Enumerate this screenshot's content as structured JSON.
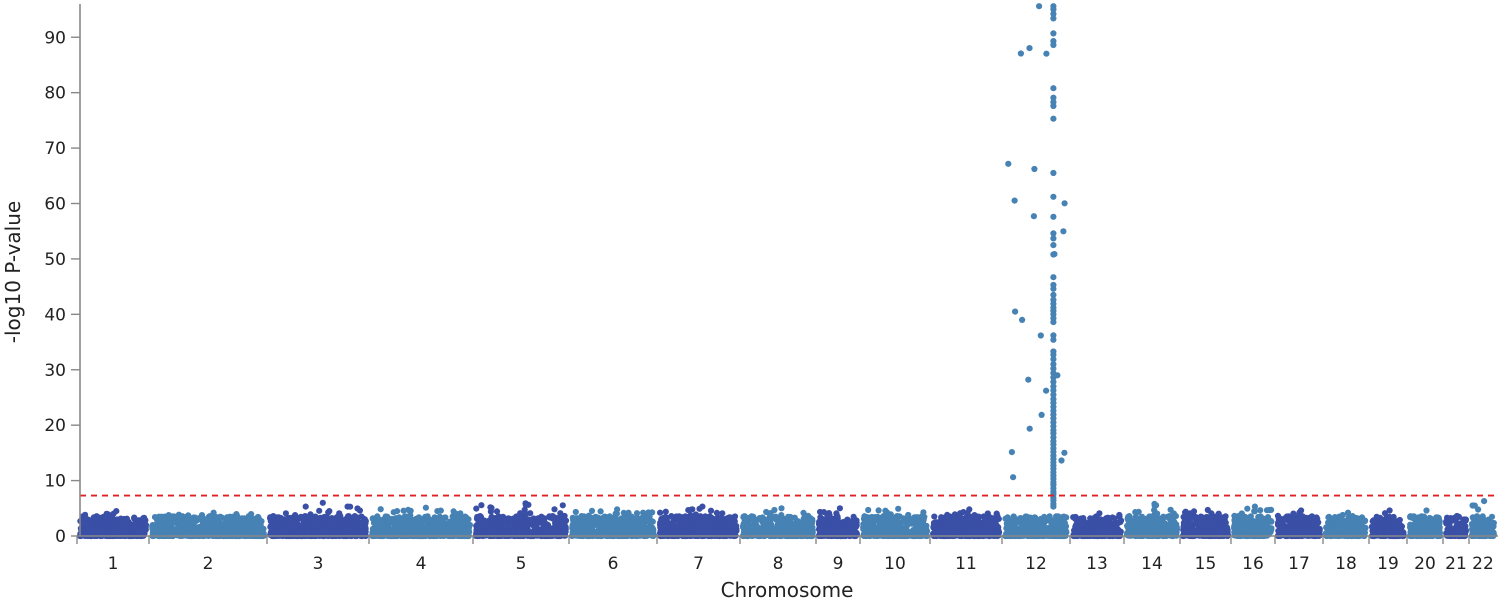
{
  "chart_data": {
    "type": "scatter",
    "subtype": "manhattan",
    "title": "",
    "xlabel": "Chromosome",
    "ylabel": "-log10 P-value",
    "ylim": [
      0,
      96
    ],
    "yticks": [
      0,
      10,
      20,
      30,
      40,
      50,
      60,
      70,
      80,
      90
    ],
    "grid": false,
    "legend": "none",
    "colors": {
      "dark": "#3a4fa6",
      "light": "#4682b4",
      "threshold": "#e02020",
      "axis": "#888888"
    },
    "threshold": {
      "value": 7.3,
      "style": "dashed"
    },
    "chromosomes": [
      {
        "label": "1",
        "color": "dark",
        "max": 4.5
      },
      {
        "label": "2",
        "color": "light",
        "max": 4.2
      },
      {
        "label": "3",
        "color": "dark",
        "max": 6.0
      },
      {
        "label": "4",
        "color": "light",
        "max": 5.1
      },
      {
        "label": "5",
        "color": "dark",
        "max": 5.9
      },
      {
        "label": "6",
        "color": "light",
        "max": 4.8
      },
      {
        "label": "7",
        "color": "dark",
        "max": 5.3
      },
      {
        "label": "8",
        "color": "light",
        "max": 5.0
      },
      {
        "label": "9",
        "color": "dark",
        "max": 5.0
      },
      {
        "label": "10",
        "color": "light",
        "max": 4.9
      },
      {
        "label": "11",
        "color": "dark",
        "max": 4.8
      },
      {
        "label": "12",
        "color": "light",
        "max": 95.6
      },
      {
        "label": "13",
        "color": "dark",
        "max": 4.1
      },
      {
        "label": "14",
        "color": "light",
        "max": 5.8
      },
      {
        "label": "15",
        "color": "dark",
        "max": 4.7
      },
      {
        "label": "16",
        "color": "light",
        "max": 5.3
      },
      {
        "label": "17",
        "color": "dark",
        "max": 4.6
      },
      {
        "label": "18",
        "color": "light",
        "max": 4.2
      },
      {
        "label": "19",
        "color": "dark",
        "max": 4.6
      },
      {
        "label": "20",
        "color": "light",
        "max": 4.6
      },
      {
        "label": "21",
        "color": "dark",
        "max": 3.6
      },
      {
        "label": "22",
        "color": "light",
        "max": 6.3
      }
    ],
    "peak": {
      "chromosome": "12",
      "values": [
        95.6,
        95.0,
        94.2,
        93.4,
        90.7,
        89.3,
        88.6,
        80.8,
        79.1,
        78.3,
        77.6,
        75.3,
        65.5,
        61.2,
        57.6,
        54.6,
        53.7,
        52.5,
        50.8,
        46.7,
        45.3,
        44.6,
        43.5,
        42.6,
        41.9,
        41.2,
        40.6,
        40.0,
        39.3,
        38.6,
        36.2,
        35.4,
        33.3,
        32.7,
        31.9,
        31.0,
        30.2,
        29.4,
        28.6,
        27.8,
        27.0,
        26.3,
        25.5,
        24.7,
        24.0,
        23.3,
        22.6,
        21.9,
        21.2,
        20.5,
        19.8,
        19.1,
        18.5,
        17.8,
        17.1,
        16.5,
        15.8,
        15.2,
        14.5,
        13.9,
        13.3,
        12.7,
        12.1,
        11.5,
        10.9,
        10.3,
        9.7,
        9.2,
        8.6,
        8.0,
        7.5,
        6.9,
        6.4,
        5.8,
        5.3
      ]
    }
  }
}
